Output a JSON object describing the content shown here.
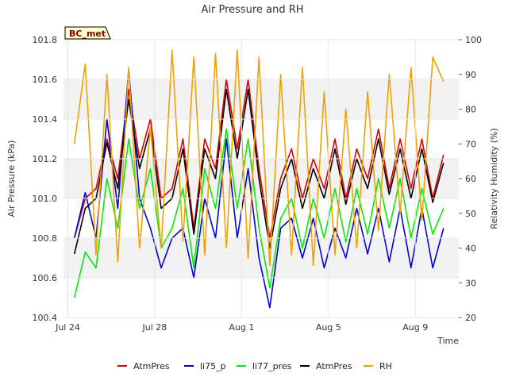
{
  "chart_data": {
    "type": "line",
    "title": "Air Pressure and RH",
    "badge": "BC_met",
    "xlabel": "Time",
    "ylabel_left": "Air Pressure (kPa)",
    "ylabel_right": "Relativity Humidity (%)",
    "ylim_left": [
      100.4,
      101.8
    ],
    "ylim_right": [
      20,
      100
    ],
    "xlim_days": [
      -0.2,
      18.0
    ],
    "x_ticks": [
      {
        "day": 0,
        "label": "Jul 24"
      },
      {
        "day": 4,
        "label": "Jul 28"
      },
      {
        "day": 8,
        "label": "Aug 1"
      },
      {
        "day": 12,
        "label": "Aug 5"
      },
      {
        "day": 16,
        "label": "Aug 9"
      }
    ],
    "y_ticks_left": [
      "100.4",
      "100.6",
      "100.8",
      "101.0",
      "101.2",
      "101.4",
      "101.6",
      "101.8"
    ],
    "y_ticks_right": [
      "20",
      "30",
      "40",
      "50",
      "60",
      "70",
      "80",
      "90",
      "100"
    ],
    "bands": [
      [
        100.6,
        100.8
      ],
      [
        101.0,
        101.2
      ],
      [
        101.4,
        101.6
      ]
    ],
    "legend": {
      "position": "bottom",
      "entries": [
        "AtmPres",
        "li75_p",
        "li77_pres",
        "AtmPres",
        "RH"
      ]
    },
    "series": [
      {
        "name": "AtmPres",
        "axis": "left",
        "color": "#dd0000",
        "x": [
          0.3,
          0.8,
          1.3,
          1.8,
          2.3,
          2.8,
          3.3,
          3.8,
          4.3,
          4.8,
          5.3,
          5.8,
          6.3,
          6.8,
          7.3,
          7.8,
          8.3,
          8.8,
          9.3,
          9.8,
          10.3,
          10.8,
          11.3,
          11.8,
          12.3,
          12.8,
          13.3,
          13.8,
          14.3,
          14.8,
          15.3,
          15.8,
          16.3,
          16.8,
          17.3
        ],
        "y": [
          100.8,
          101.0,
          101.05,
          101.3,
          101.1,
          101.55,
          101.2,
          101.4,
          101.0,
          101.05,
          101.3,
          100.85,
          101.3,
          101.15,
          101.6,
          101.25,
          101.6,
          101.15,
          100.8,
          101.1,
          101.25,
          101.0,
          101.2,
          101.05,
          101.3,
          101.0,
          101.25,
          101.1,
          101.35,
          101.05,
          101.3,
          101.05,
          101.3,
          101.0,
          101.22
        ]
      },
      {
        "name": "li75_p",
        "axis": "left",
        "color": "#0000dd",
        "x": [
          0.3,
          0.8,
          1.3,
          1.8,
          2.3,
          2.8,
          3.3,
          3.8,
          4.3,
          4.8,
          5.3,
          5.8,
          6.3,
          6.8,
          7.3,
          7.8,
          8.3,
          8.8,
          9.3,
          9.8,
          10.3,
          10.8,
          11.3,
          11.8,
          12.3,
          12.8,
          13.3,
          13.8,
          14.3,
          14.8,
          15.3,
          15.8,
          16.3,
          16.8,
          17.3
        ],
        "y": [
          100.8,
          101.03,
          100.8,
          101.4,
          100.95,
          101.65,
          101.0,
          100.85,
          100.65,
          100.8,
          100.85,
          100.6,
          101.0,
          100.8,
          101.3,
          100.8,
          101.15,
          100.7,
          100.45,
          100.85,
          100.9,
          100.7,
          100.9,
          100.65,
          100.85,
          100.7,
          100.95,
          100.72,
          100.95,
          100.68,
          100.95,
          100.65,
          100.95,
          100.65,
          100.85
        ]
      },
      {
        "name": "li77_pres",
        "axis": "left",
        "color": "#00ee00",
        "x": [
          0.3,
          0.8,
          1.3,
          1.8,
          2.3,
          2.8,
          3.3,
          3.8,
          4.3,
          4.8,
          5.3,
          5.8,
          6.3,
          6.8,
          7.3,
          7.8,
          8.3,
          8.8,
          9.3,
          9.8,
          10.3,
          10.8,
          11.3,
          11.8,
          12.3,
          12.8,
          13.3,
          13.8,
          14.3,
          14.8,
          15.3,
          15.8,
          16.3,
          16.8,
          17.3
        ],
        "y": [
          100.5,
          100.73,
          100.65,
          101.1,
          100.85,
          101.3,
          100.95,
          101.15,
          100.75,
          100.85,
          101.05,
          100.65,
          101.15,
          100.95,
          101.35,
          100.95,
          101.3,
          100.85,
          100.55,
          100.9,
          101.0,
          100.75,
          101.0,
          100.8,
          101.05,
          100.78,
          101.05,
          100.82,
          101.1,
          100.85,
          101.1,
          100.8,
          101.05,
          100.82,
          100.95
        ]
      },
      {
        "name": "AtmPres",
        "axis": "left",
        "color": "#000000",
        "x": [
          0.3,
          0.8,
          1.3,
          1.8,
          2.3,
          2.8,
          3.3,
          3.8,
          4.3,
          4.8,
          5.3,
          5.8,
          6.3,
          6.8,
          7.3,
          7.8,
          8.3,
          8.8,
          9.3,
          9.8,
          10.3,
          10.8,
          11.3,
          11.8,
          12.3,
          12.8,
          13.3,
          13.8,
          14.3,
          14.8,
          15.3,
          15.8,
          16.3,
          16.8,
          17.3
        ],
        "y": [
          100.72,
          100.95,
          101.0,
          101.28,
          101.05,
          101.5,
          101.15,
          101.35,
          100.95,
          101.0,
          101.25,
          100.82,
          101.25,
          101.1,
          101.55,
          101.2,
          101.55,
          101.1,
          100.75,
          101.05,
          101.2,
          100.95,
          101.15,
          101.0,
          101.25,
          100.97,
          101.2,
          101.05,
          101.3,
          101.02,
          101.25,
          101.0,
          101.25,
          100.98,
          101.18
        ]
      },
      {
        "name": "RH",
        "axis": "right",
        "color": "#f0a000",
        "x": [
          0.3,
          0.8,
          1.3,
          1.8,
          2.3,
          2.8,
          3.3,
          3.8,
          4.3,
          4.8,
          5.3,
          5.8,
          6.3,
          6.8,
          7.3,
          7.8,
          8.3,
          8.8,
          9.3,
          9.8,
          10.3,
          10.8,
          11.3,
          11.8,
          12.3,
          12.8,
          13.3,
          13.8,
          14.3,
          14.8,
          15.3,
          15.8,
          16.3,
          16.8,
          17.3
        ],
        "y": [
          70,
          93,
          38,
          90,
          36,
          92,
          40,
          75,
          40,
          97,
          42,
          95,
          38,
          96,
          40,
          97,
          37,
          95,
          35,
          90,
          38,
          92,
          35,
          85,
          38,
          80,
          40,
          85,
          45,
          90,
          50,
          92,
          48,
          95,
          88
        ]
      }
    ]
  }
}
